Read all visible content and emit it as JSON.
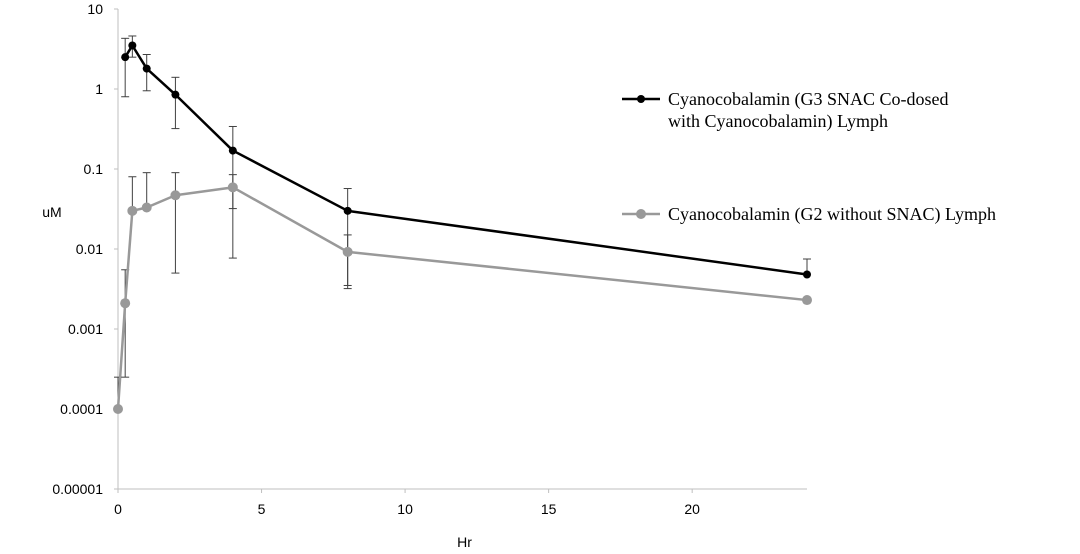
{
  "chart_data": {
    "type": "line",
    "title": "",
    "xlabel": "Hr",
    "ylabel": "uM",
    "y_scale": "log",
    "xlim": [
      0,
      24
    ],
    "ylim": [
      1e-05,
      10
    ],
    "x_ticks": [
      0,
      5,
      10,
      15,
      20
    ],
    "x_tick_labels": [
      "0",
      "5",
      "10",
      "15",
      "20"
    ],
    "y_ticks": [
      10,
      1,
      0.1,
      0.01,
      0.001,
      0.0001,
      1e-05
    ],
    "y_tick_labels": [
      "10",
      "1",
      "0.1",
      "0.01",
      "0.001",
      "0.0001",
      "0.00001"
    ],
    "grid": false,
    "legend_position": "right",
    "series": [
      {
        "name": "Cyanocobalamin (G3 SNAC Co-dosed with Cyanocobalamin) Lymph",
        "legend_lines": [
          "Cyanocobalamin (G3 SNAC Co-dosed",
          "with Cyanocobalamin) Lymph"
        ],
        "color": "#000000",
        "x": [
          0.25,
          0.5,
          1,
          2,
          4,
          8,
          24
        ],
        "y": [
          2.5,
          3.5,
          1.8,
          0.85,
          0.17,
          0.03,
          0.0048
        ],
        "err_low": [
          0.8,
          2.5,
          0.95,
          0.32,
          0.032,
          0.0035,
          null
        ],
        "err_high": [
          4.3,
          4.6,
          2.7,
          1.4,
          0.34,
          0.057,
          0.0075
        ]
      },
      {
        "name": "Cyanocobalamin (G2 without SNAC) Lymph",
        "legend_lines": [
          "Cyanocobalamin (G2 without SNAC) Lymph"
        ],
        "color": "#999999",
        "x": [
          0,
          0.25,
          0.5,
          1,
          2,
          4,
          8,
          24
        ],
        "y": [
          0.0001,
          0.0021,
          0.03,
          0.033,
          0.047,
          0.059,
          0.0092,
          0.0023
        ],
        "err_low": [
          null,
          0.00025,
          null,
          null,
          0.005,
          0.0077,
          0.0032,
          null
        ],
        "err_high": [
          0.00025,
          0.0055,
          0.08,
          0.09,
          0.09,
          0.085,
          0.015,
          null
        ]
      }
    ]
  }
}
